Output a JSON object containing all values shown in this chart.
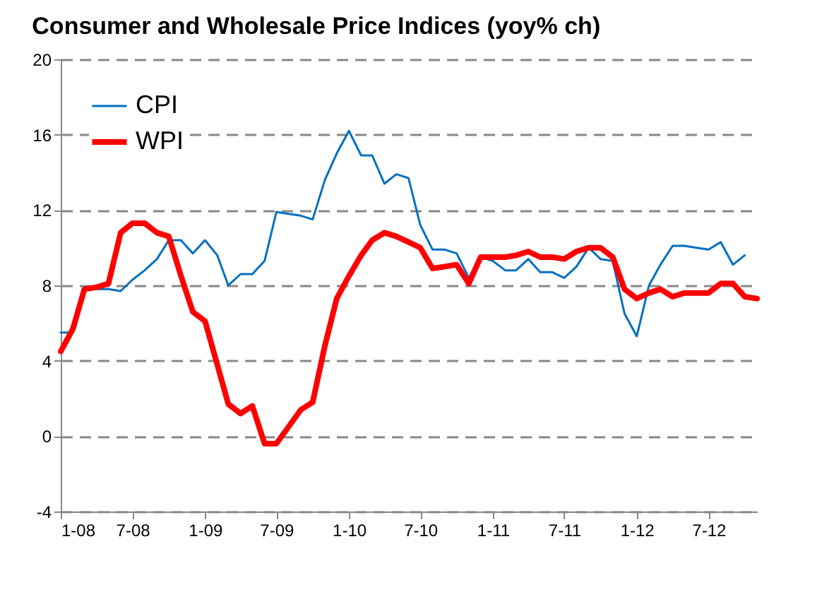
{
  "chart_data": {
    "type": "line",
    "title": "Consumer and Wholesale Price Indices (yoy% ch)",
    "x": [
      "2008-01",
      "2008-02",
      "2008-03",
      "2008-04",
      "2008-05",
      "2008-06",
      "2008-07",
      "2008-08",
      "2008-09",
      "2008-10",
      "2008-11",
      "2008-12",
      "2009-01",
      "2009-02",
      "2009-03",
      "2009-04",
      "2009-05",
      "2009-06",
      "2009-07",
      "2009-08",
      "2009-09",
      "2009-10",
      "2009-11",
      "2009-12",
      "2010-01",
      "2010-02",
      "2010-03",
      "2010-04",
      "2010-05",
      "2010-06",
      "2010-07",
      "2010-08",
      "2010-09",
      "2010-10",
      "2010-11",
      "2010-12",
      "2011-01",
      "2011-02",
      "2011-03",
      "2011-04",
      "2011-05",
      "2011-06",
      "2011-07",
      "2011-08",
      "2011-09",
      "2011-10",
      "2011-11",
      "2011-12",
      "2012-01",
      "2012-02",
      "2012-03",
      "2012-04",
      "2012-05",
      "2012-06",
      "2012-07",
      "2012-08",
      "2012-09",
      "2012-10",
      "2012-11"
    ],
    "series": [
      {
        "name": "CPI",
        "color": "#0070c0",
        "values": [
          5.5,
          5.5,
          7.9,
          7.8,
          7.8,
          7.7,
          8.3,
          8.8,
          9.4,
          10.4,
          10.4,
          9.7,
          10.4,
          9.6,
          8.0,
          8.6,
          8.6,
          9.3,
          11.9,
          11.8,
          11.7,
          11.5,
          13.6,
          15.0,
          16.2,
          14.9,
          14.9,
          13.4,
          13.9,
          13.7,
          11.2,
          9.9,
          9.9,
          9.7,
          8.4,
          9.5,
          9.3,
          8.8,
          8.8,
          9.4,
          8.7,
          8.7,
          8.4,
          9.0,
          10.0,
          9.4,
          9.3,
          6.5,
          5.3,
          8.0,
          9.1,
          10.1,
          10.1,
          10.0,
          9.9,
          10.3,
          9.1,
          9.6,
          null
        ]
      },
      {
        "name": "WPI",
        "color": "#ff0000",
        "values": [
          4.5,
          5.7,
          7.8,
          7.9,
          8.1,
          10.8,
          11.3,
          11.3,
          10.8,
          10.6,
          8.5,
          6.6,
          6.1,
          3.8,
          1.7,
          1.2,
          1.6,
          -0.4,
          -0.4,
          0.5,
          1.4,
          1.8,
          4.8,
          7.3,
          8.5,
          9.6,
          10.4,
          10.8,
          10.6,
          10.3,
          10.0,
          8.9,
          9.0,
          9.1,
          8.1,
          9.5,
          9.5,
          9.5,
          9.6,
          9.8,
          9.5,
          9.5,
          9.4,
          9.8,
          10.0,
          10.0,
          9.5,
          7.8,
          7.3,
          7.6,
          7.8,
          7.4,
          7.6,
          7.6,
          7.6,
          8.1,
          8.1,
          7.4,
          7.3
        ]
      }
    ],
    "xlim": [
      "2008-01",
      "2012-11"
    ],
    "xticks": [
      {
        "value": "2008-01",
        "label": "1-08"
      },
      {
        "value": "2008-07",
        "label": "7-08"
      },
      {
        "value": "2009-01",
        "label": "1-09"
      },
      {
        "value": "2009-07",
        "label": "7-09"
      },
      {
        "value": "2010-01",
        "label": "1-10"
      },
      {
        "value": "2010-07",
        "label": "7-10"
      },
      {
        "value": "2011-01",
        "label": "1-11"
      },
      {
        "value": "2011-07",
        "label": "7-11"
      },
      {
        "value": "2012-01",
        "label": "1-12"
      },
      {
        "value": "2012-07",
        "label": "7-12"
      }
    ],
    "ylim": [
      -4,
      20
    ],
    "yticks": [
      -4,
      0,
      4,
      8,
      12,
      16,
      20
    ],
    "grid": "y",
    "legend": "top left",
    "marker": "none",
    "line_style": "solid"
  }
}
